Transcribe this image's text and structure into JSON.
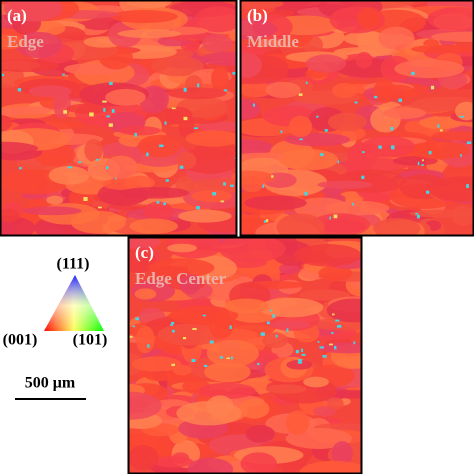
{
  "panels": [
    {
      "label": "(a)",
      "name": "Edge"
    },
    {
      "label": "(b)",
      "name": "Middle"
    },
    {
      "label": "(c)",
      "name": "Edge Center"
    }
  ],
  "legend": {
    "top": "(111)",
    "left": "(001)",
    "right": "(101)"
  },
  "scale_bar": "500 μm"
}
